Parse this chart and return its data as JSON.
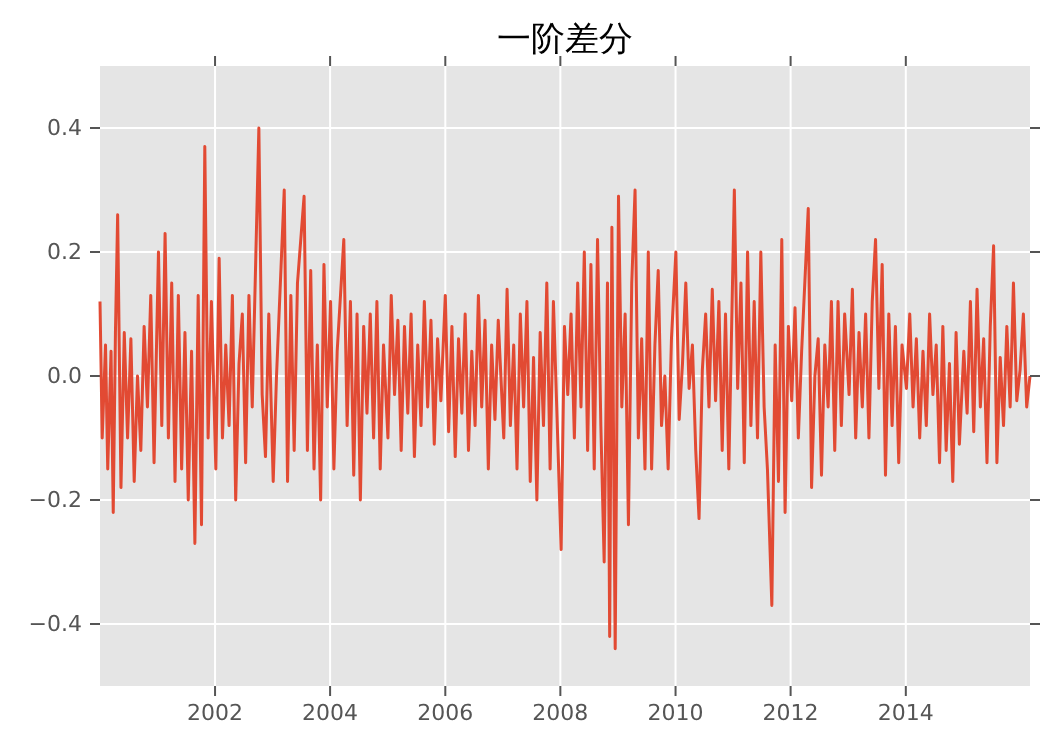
{
  "chart_data": {
    "type": "line",
    "title": "一阶差分",
    "color": "#e24a33",
    "grid": true,
    "marker": "none",
    "line_style": "solid",
    "xlim": [
      "2000-01-02",
      "2016-02-28"
    ],
    "xticks": [
      {
        "value": "2002-01-01",
        "label": "2002"
      },
      {
        "value": "2004-01-01",
        "label": "2004"
      },
      {
        "value": "2006-01-01",
        "label": "2006"
      },
      {
        "value": "2008-01-01",
        "label": "2008"
      },
      {
        "value": "2010-01-01",
        "label": "2010"
      },
      {
        "value": "2012-01-01",
        "label": "2012"
      },
      {
        "value": "2014-01-01",
        "label": "2014"
      }
    ],
    "ylim": [
      -0.5,
      0.5
    ],
    "yticks": [
      {
        "value": -0.4,
        "label": "−0.4"
      },
      {
        "value": -0.2,
        "label": "−0.2"
      },
      {
        "value": 0,
        "label": "0.0"
      },
      {
        "value": 0.2,
        "label": "0.2"
      },
      {
        "value": 0.4,
        "label": "0.4"
      }
    ],
    "x": [
      "2000-01-02",
      "2000-01-16",
      "2000-02-06",
      "2000-02-20",
      "2000-03-12",
      "2000-03-26",
      "2000-04-09",
      "2000-04-23",
      "2000-05-14",
      "2000-06-04",
      "2000-06-25",
      "2000-07-16",
      "2000-08-06",
      "2000-08-27",
      "2000-09-17",
      "2000-10-08",
      "2000-10-29",
      "2000-11-19",
      "2000-12-10",
      "2001-01-07",
      "2001-01-28",
      "2001-02-18",
      "2001-03-11",
      "2001-04-01",
      "2001-04-22",
      "2001-05-13",
      "2001-06-03",
      "2001-06-24",
      "2001-07-15",
      "2001-08-05",
      "2001-08-26",
      "2001-09-16",
      "2001-10-07",
      "2001-10-28",
      "2001-11-18",
      "2001-12-09",
      "2002-01-06",
      "2002-01-27",
      "2002-02-17",
      "2002-03-10",
      "2002-03-31",
      "2002-04-21",
      "2002-05-12",
      "2002-06-02",
      "2002-06-23",
      "2002-07-14",
      "2002-08-04",
      "2002-08-25",
      "2002-10-06",
      "2002-10-27",
      "2002-11-17",
      "2002-12-08",
      "2003-01-05",
      "2003-01-26",
      "2003-03-16",
      "2003-04-06",
      "2003-04-27",
      "2003-05-18",
      "2003-06-08",
      "2003-07-20",
      "2003-08-10",
      "2003-08-31",
      "2003-09-21",
      "2003-10-12",
      "2003-11-02",
      "2003-11-23",
      "2003-12-14",
      "2004-01-04",
      "2004-01-25",
      "2004-02-15",
      "2004-03-28",
      "2004-04-18",
      "2004-05-09",
      "2004-05-30",
      "2004-06-20",
      "2004-07-11",
      "2004-08-01",
      "2004-08-22",
      "2004-09-12",
      "2004-10-03",
      "2004-10-24",
      "2004-11-14",
      "2004-12-05",
      "2005-01-02",
      "2005-01-23",
      "2005-02-13",
      "2005-03-06",
      "2005-03-27",
      "2005-04-17",
      "2005-05-08",
      "2005-05-29",
      "2005-06-19",
      "2005-07-10",
      "2005-07-31",
      "2005-08-21",
      "2005-09-11",
      "2005-10-02",
      "2005-10-23",
      "2005-11-13",
      "2005-12-04",
      "2006-01-01",
      "2006-01-22",
      "2006-02-12",
      "2006-03-05",
      "2006-03-26",
      "2006-04-16",
      "2006-05-07",
      "2006-05-28",
      "2006-06-18",
      "2006-07-09",
      "2006-07-30",
      "2006-08-20",
      "2006-09-10",
      "2006-10-01",
      "2006-10-22",
      "2006-11-12",
      "2006-12-03",
      "2007-01-07",
      "2007-01-28",
      "2007-02-18",
      "2007-03-11",
      "2007-04-01",
      "2007-04-22",
      "2007-05-13",
      "2007-06-03",
      "2007-06-24",
      "2007-07-15",
      "2007-08-05",
      "2007-08-26",
      "2007-09-16",
      "2007-10-07",
      "2007-10-28",
      "2007-11-18",
      "2007-12-09",
      "2008-01-06",
      "2008-01-27",
      "2008-02-17",
      "2008-03-09",
      "2008-03-30",
      "2008-04-20",
      "2008-05-11",
      "2008-06-01",
      "2008-06-22",
      "2008-07-13",
      "2008-08-03",
      "2008-08-24",
      "2008-09-14",
      "2008-10-05",
      "2008-10-26",
      "2008-11-09",
      "2008-11-23",
      "2008-12-14",
      "2009-01-04",
      "2009-01-25",
      "2009-02-15",
      "2009-03-08",
      "2009-03-29",
      "2009-04-19",
      "2009-05-10",
      "2009-05-31",
      "2009-06-21",
      "2009-07-12",
      "2009-08-02",
      "2009-08-23",
      "2009-09-13",
      "2009-10-04",
      "2009-10-25",
      "2009-11-15",
      "2009-12-06",
      "2010-01-03",
      "2010-01-24",
      "2010-02-14",
      "2010-03-07",
      "2010-03-28",
      "2010-04-18",
      "2010-05-09",
      "2010-05-30",
      "2010-06-20",
      "2010-07-11",
      "2010-08-01",
      "2010-08-22",
      "2010-09-12",
      "2010-10-03",
      "2010-10-24",
      "2010-11-14",
      "2010-12-05",
      "2011-01-09",
      "2011-01-30",
      "2011-02-20",
      "2011-03-13",
      "2011-04-03",
      "2011-04-24",
      "2011-05-15",
      "2011-06-05",
      "2011-06-26",
      "2011-07-17",
      "2011-08-07",
      "2011-09-04",
      "2011-09-25",
      "2011-10-16",
      "2011-11-06",
      "2011-11-27",
      "2011-12-18",
      "2012-01-08",
      "2012-01-29",
      "2012-02-19",
      "2012-03-11",
      "2012-04-22",
      "2012-05-13",
      "2012-06-03",
      "2012-06-24",
      "2012-07-15",
      "2012-08-05",
      "2012-08-26",
      "2012-09-16",
      "2012-10-07",
      "2012-10-28",
      "2012-11-18",
      "2012-12-09",
      "2013-01-06",
      "2013-01-27",
      "2013-02-17",
      "2013-03-10",
      "2013-03-31",
      "2013-04-21",
      "2013-05-12",
      "2013-06-02",
      "2013-06-23",
      "2013-07-14",
      "2013-08-04",
      "2013-08-25",
      "2013-09-15",
      "2013-10-06",
      "2013-10-27",
      "2013-11-17",
      "2013-12-08",
      "2014-01-05",
      "2014-01-26",
      "2014-02-16",
      "2014-03-09",
      "2014-03-30",
      "2014-04-20",
      "2014-05-11",
      "2014-06-01",
      "2014-06-22",
      "2014-07-13",
      "2014-08-03",
      "2014-08-24",
      "2014-09-14",
      "2014-10-05",
      "2014-10-26",
      "2014-11-16",
      "2014-12-07",
      "2015-01-04",
      "2015-01-25",
      "2015-02-15",
      "2015-03-08",
      "2015-03-29",
      "2015-04-19",
      "2015-05-10",
      "2015-05-31",
      "2015-06-21",
      "2015-07-12",
      "2015-08-02",
      "2015-08-23",
      "2015-09-13",
      "2015-10-04",
      "2015-10-25",
      "2015-11-15",
      "2015-12-06",
      "2015-12-27",
      "2016-01-17",
      "2016-02-07",
      "2016-02-28"
    ],
    "values": [
      0.12,
      -0.1,
      0.05,
      -0.15,
      0.04,
      -0.22,
      0.07,
      0.26,
      -0.18,
      0.07,
      -0.1,
      0.06,
      -0.17,
      0.0,
      -0.12,
      0.08,
      -0.05,
      0.13,
      -0.14,
      0.2,
      -0.08,
      0.23,
      -0.1,
      0.15,
      -0.17,
      0.13,
      -0.15,
      0.07,
      -0.2,
      0.04,
      -0.27,
      0.13,
      -0.24,
      0.37,
      -0.1,
      0.12,
      -0.15,
      0.19,
      -0.1,
      0.05,
      -0.08,
      0.13,
      -0.2,
      0.02,
      0.1,
      -0.14,
      0.13,
      -0.05,
      0.4,
      -0.03,
      -0.13,
      0.1,
      -0.17,
      0.0,
      0.3,
      -0.17,
      0.13,
      -0.12,
      0.15,
      0.29,
      -0.12,
      0.17,
      -0.15,
      0.05,
      -0.2,
      0.18,
      -0.05,
      0.12,
      -0.15,
      0.04,
      0.22,
      -0.08,
      0.12,
      -0.16,
      0.1,
      -0.2,
      0.08,
      -0.06,
      0.1,
      -0.1,
      0.12,
      -0.15,
      0.05,
      -0.1,
      0.13,
      -0.03,
      0.09,
      -0.12,
      0.08,
      -0.06,
      0.1,
      -0.13,
      0.05,
      -0.08,
      0.12,
      -0.05,
      0.09,
      -0.11,
      0.06,
      -0.04,
      0.13,
      -0.09,
      0.08,
      -0.13,
      0.06,
      -0.06,
      0.1,
      -0.12,
      0.04,
      -0.08,
      0.13,
      -0.05,
      0.09,
      -0.15,
      0.05,
      -0.07,
      0.09,
      -0.1,
      0.14,
      -0.08,
      0.05,
      -0.15,
      0.1,
      -0.05,
      0.12,
      -0.17,
      0.03,
      -0.2,
      0.07,
      -0.08,
      0.15,
      -0.15,
      0.12,
      -0.05,
      -0.28,
      0.08,
      -0.03,
      0.1,
      -0.1,
      0.15,
      -0.05,
      0.2,
      -0.12,
      0.18,
      -0.15,
      0.22,
      -0.08,
      -0.3,
      0.15,
      -0.42,
      0.24,
      -0.44,
      0.29,
      -0.05,
      0.1,
      -0.24,
      0.15,
      0.3,
      -0.1,
      0.06,
      -0.15,
      0.2,
      -0.15,
      0.05,
      0.17,
      -0.08,
      0.0,
      -0.15,
      0.06,
      0.2,
      -0.07,
      0.02,
      0.15,
      -0.02,
      0.05,
      -0.12,
      -0.23,
      0.01,
      0.1,
      -0.05,
      0.14,
      -0.04,
      0.12,
      -0.12,
      0.1,
      -0.15,
      0.3,
      -0.02,
      0.15,
      -0.14,
      0.2,
      -0.08,
      0.12,
      -0.1,
      0.2,
      -0.05,
      -0.15,
      -0.37,
      0.05,
      -0.17,
      0.22,
      -0.22,
      0.08,
      -0.04,
      0.11,
      -0.1,
      0.04,
      0.27,
      -0.18,
      0.0,
      0.06,
      -0.16,
      0.05,
      -0.05,
      0.12,
      -0.12,
      0.12,
      -0.08,
      0.1,
      -0.03,
      0.14,
      -0.1,
      0.07,
      -0.05,
      0.1,
      -0.1,
      0.12,
      0.22,
      -0.02,
      0.18,
      -0.16,
      0.1,
      -0.08,
      0.08,
      -0.14,
      0.05,
      -0.02,
      0.1,
      -0.05,
      0.06,
      -0.1,
      0.04,
      -0.08,
      0.1,
      -0.03,
      0.05,
      -0.14,
      0.08,
      -0.12,
      0.02,
      -0.17,
      0.07,
      -0.11,
      0.04,
      -0.06,
      0.12,
      -0.09,
      0.14,
      -0.05,
      0.06,
      -0.14,
      0.08,
      0.21,
      -0.14,
      0.03,
      -0.08,
      0.08,
      -0.05,
      0.15,
      -0.04,
      0.01,
      0.1,
      -0.05,
      0.0
    ]
  }
}
